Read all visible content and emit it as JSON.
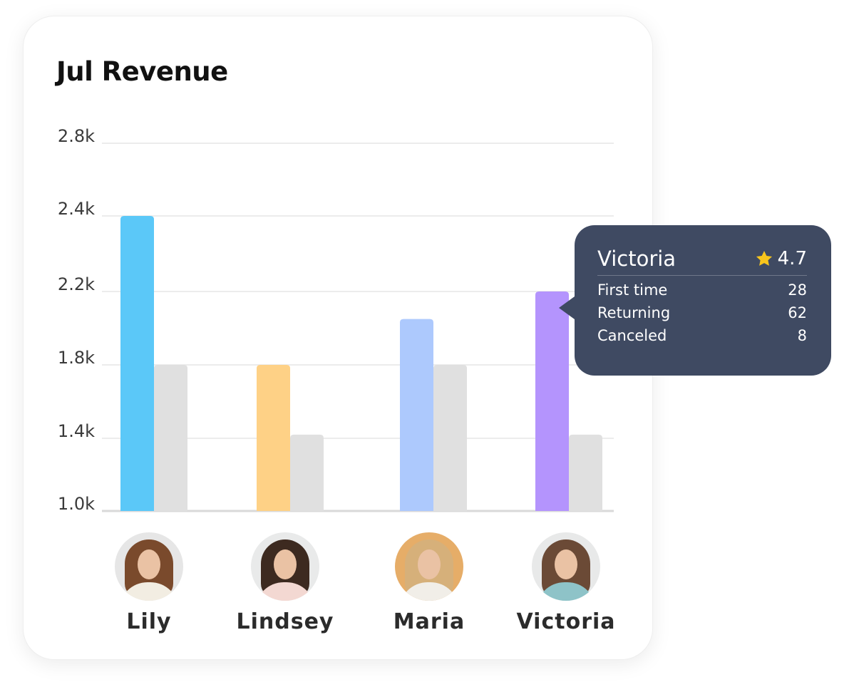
{
  "card": {
    "title": "Jul Revenue"
  },
  "chart_data": {
    "type": "bar",
    "title": "Jul Revenue",
    "xlabel": "",
    "ylabel": "",
    "categories": [
      "Lily",
      "Lindsey",
      "Maria",
      "Victoria"
    ],
    "y_ticks": [
      "1.0k",
      "1.4k",
      "1.8k",
      "2.2k",
      "2.4k",
      "2.8k"
    ],
    "y_tick_values": [
      1000,
      1400,
      1800,
      2200,
      2400,
      2800
    ],
    "series": [
      {
        "values": [
          2400,
          1800,
          2050,
          2200
        ],
        "colors": [
          "#5bc8f8",
          "#fed186",
          "#adc9fd",
          "#b494fd"
        ]
      },
      {
        "values": [
          1800,
          1420,
          1800,
          1420
        ],
        "color": "#e0e0e0"
      }
    ],
    "grid": true,
    "legend": "none"
  },
  "people": [
    {
      "name": "Lily",
      "avatar_icon": "woman-avatar-icon",
      "hair": "#7a4a2c",
      "top": "#f2ede2",
      "bg": "#e6e6e6"
    },
    {
      "name": "Lindsey",
      "avatar_icon": "woman-avatar-icon",
      "hair": "#3d2a20",
      "top": "#f3d8d2",
      "bg": "#e9eaea"
    },
    {
      "name": "Maria",
      "avatar_icon": "woman-avatar-icon",
      "hair": "#d6b07a",
      "top": "#f1eee8",
      "bg": "#e6ad68"
    },
    {
      "name": "Victoria",
      "avatar_icon": "woman-avatar-icon",
      "hair": "#6b4a36",
      "top": "#8ec3c8",
      "bg": "#e8e9e9"
    }
  ],
  "tooltip": {
    "name": "Victoria",
    "rating": "4.7",
    "rating_icon": "star-icon",
    "star_color": "#f8c51c",
    "rows": [
      {
        "label": "First time",
        "value": "28"
      },
      {
        "label": "Returning",
        "value": "62"
      },
      {
        "label": "Canceled",
        "value": "8"
      }
    ]
  }
}
